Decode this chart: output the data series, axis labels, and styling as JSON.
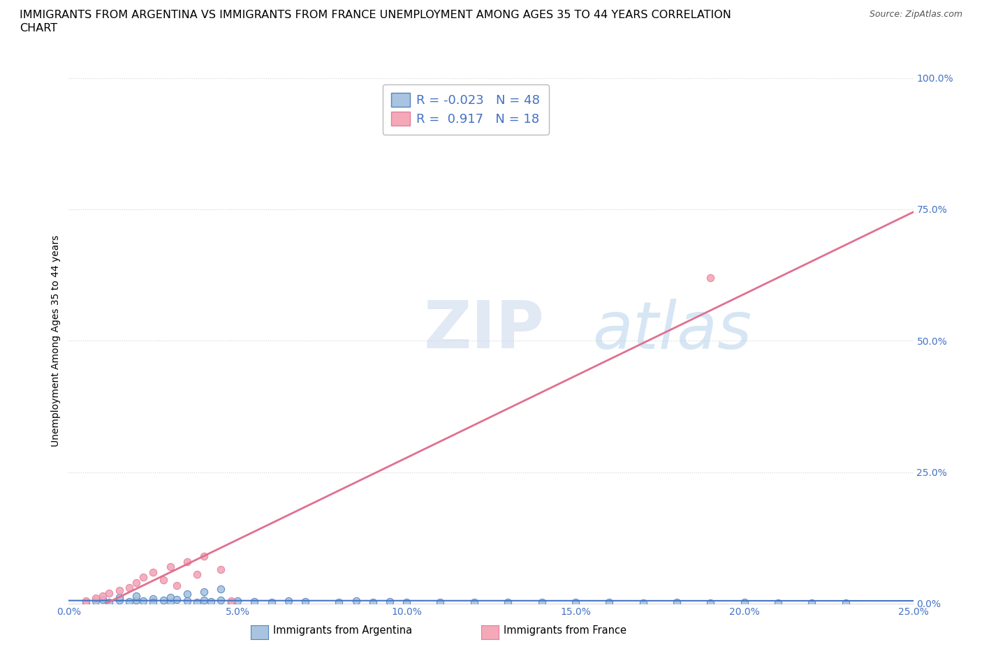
{
  "title_line1": "IMMIGRANTS FROM ARGENTINA VS IMMIGRANTS FROM FRANCE UNEMPLOYMENT AMONG AGES 35 TO 44 YEARS CORRELATION",
  "title_line2": "CHART",
  "source_text": "Source: ZipAtlas.com",
  "ylabel": "Unemployment Among Ages 35 to 44 years",
  "xlim": [
    0.0,
    0.25
  ],
  "ylim": [
    0.0,
    1.0
  ],
  "xticks": [
    0.0,
    0.05,
    0.1,
    0.15,
    0.2,
    0.25
  ],
  "yticks": [
    0.0,
    0.25,
    0.5,
    0.75,
    1.0
  ],
  "xtick_labels": [
    "0.0%",
    "5.0%",
    "10.0%",
    "15.0%",
    "20.0%",
    "25.0%"
  ],
  "ytick_labels": [
    "0.0%",
    "25.0%",
    "50.0%",
    "75.0%",
    "100.0%"
  ],
  "argentina_color": "#a8c4e0",
  "france_color": "#f4a8b8",
  "argentina_edge_color": "#5585c0",
  "france_edge_color": "#e080a0",
  "argentina_line_color": "#4472c4",
  "france_line_color": "#e07090",
  "argentina_R": -0.023,
  "argentina_N": 48,
  "france_R": 0.917,
  "france_N": 18,
  "argentina_dots": [
    [
      0.005,
      0.002
    ],
    [
      0.008,
      0.005
    ],
    [
      0.01,
      0.008
    ],
    [
      0.012,
      0.003
    ],
    [
      0.015,
      0.006
    ],
    [
      0.015,
      0.012
    ],
    [
      0.018,
      0.004
    ],
    [
      0.02,
      0.007
    ],
    [
      0.02,
      0.015
    ],
    [
      0.022,
      0.005
    ],
    [
      0.025,
      0.009
    ],
    [
      0.025,
      0.003
    ],
    [
      0.028,
      0.006
    ],
    [
      0.03,
      0.004
    ],
    [
      0.03,
      0.012
    ],
    [
      0.032,
      0.008
    ],
    [
      0.035,
      0.005
    ],
    [
      0.035,
      0.018
    ],
    [
      0.038,
      0.003
    ],
    [
      0.04,
      0.007
    ],
    [
      0.04,
      0.022
    ],
    [
      0.042,
      0.004
    ],
    [
      0.045,
      0.006
    ],
    [
      0.045,
      0.028
    ],
    [
      0.048,
      0.003
    ],
    [
      0.05,
      0.005
    ],
    [
      0.055,
      0.004
    ],
    [
      0.06,
      0.003
    ],
    [
      0.065,
      0.005
    ],
    [
      0.07,
      0.004
    ],
    [
      0.08,
      0.003
    ],
    [
      0.085,
      0.005
    ],
    [
      0.09,
      0.003
    ],
    [
      0.095,
      0.004
    ],
    [
      0.1,
      0.003
    ],
    [
      0.11,
      0.002
    ],
    [
      0.12,
      0.003
    ],
    [
      0.13,
      0.002
    ],
    [
      0.14,
      0.003
    ],
    [
      0.15,
      0.002
    ],
    [
      0.16,
      0.002
    ],
    [
      0.17,
      0.001
    ],
    [
      0.18,
      0.002
    ],
    [
      0.19,
      0.001
    ],
    [
      0.2,
      0.002
    ],
    [
      0.21,
      0.001
    ],
    [
      0.22,
      0.001
    ],
    [
      0.23,
      0.001
    ]
  ],
  "france_dots": [
    [
      0.005,
      0.005
    ],
    [
      0.008,
      0.01
    ],
    [
      0.01,
      0.015
    ],
    [
      0.012,
      0.02
    ],
    [
      0.015,
      0.025
    ],
    [
      0.018,
      0.03
    ],
    [
      0.02,
      0.04
    ],
    [
      0.022,
      0.05
    ],
    [
      0.025,
      0.06
    ],
    [
      0.028,
      0.045
    ],
    [
      0.03,
      0.07
    ],
    [
      0.032,
      0.035
    ],
    [
      0.035,
      0.08
    ],
    [
      0.038,
      0.055
    ],
    [
      0.04,
      0.09
    ],
    [
      0.045,
      0.065
    ],
    [
      0.048,
      0.005
    ],
    [
      0.19,
      0.62
    ]
  ],
  "watermark_zip": "ZIP",
  "watermark_atlas": "atlas",
  "background_color": "#ffffff",
  "grid_color": "#cccccc",
  "tick_color": "#4472c4",
  "title_fontsize": 11.5,
  "axis_label_fontsize": 10,
  "tick_fontsize": 10,
  "legend_fontsize": 12
}
